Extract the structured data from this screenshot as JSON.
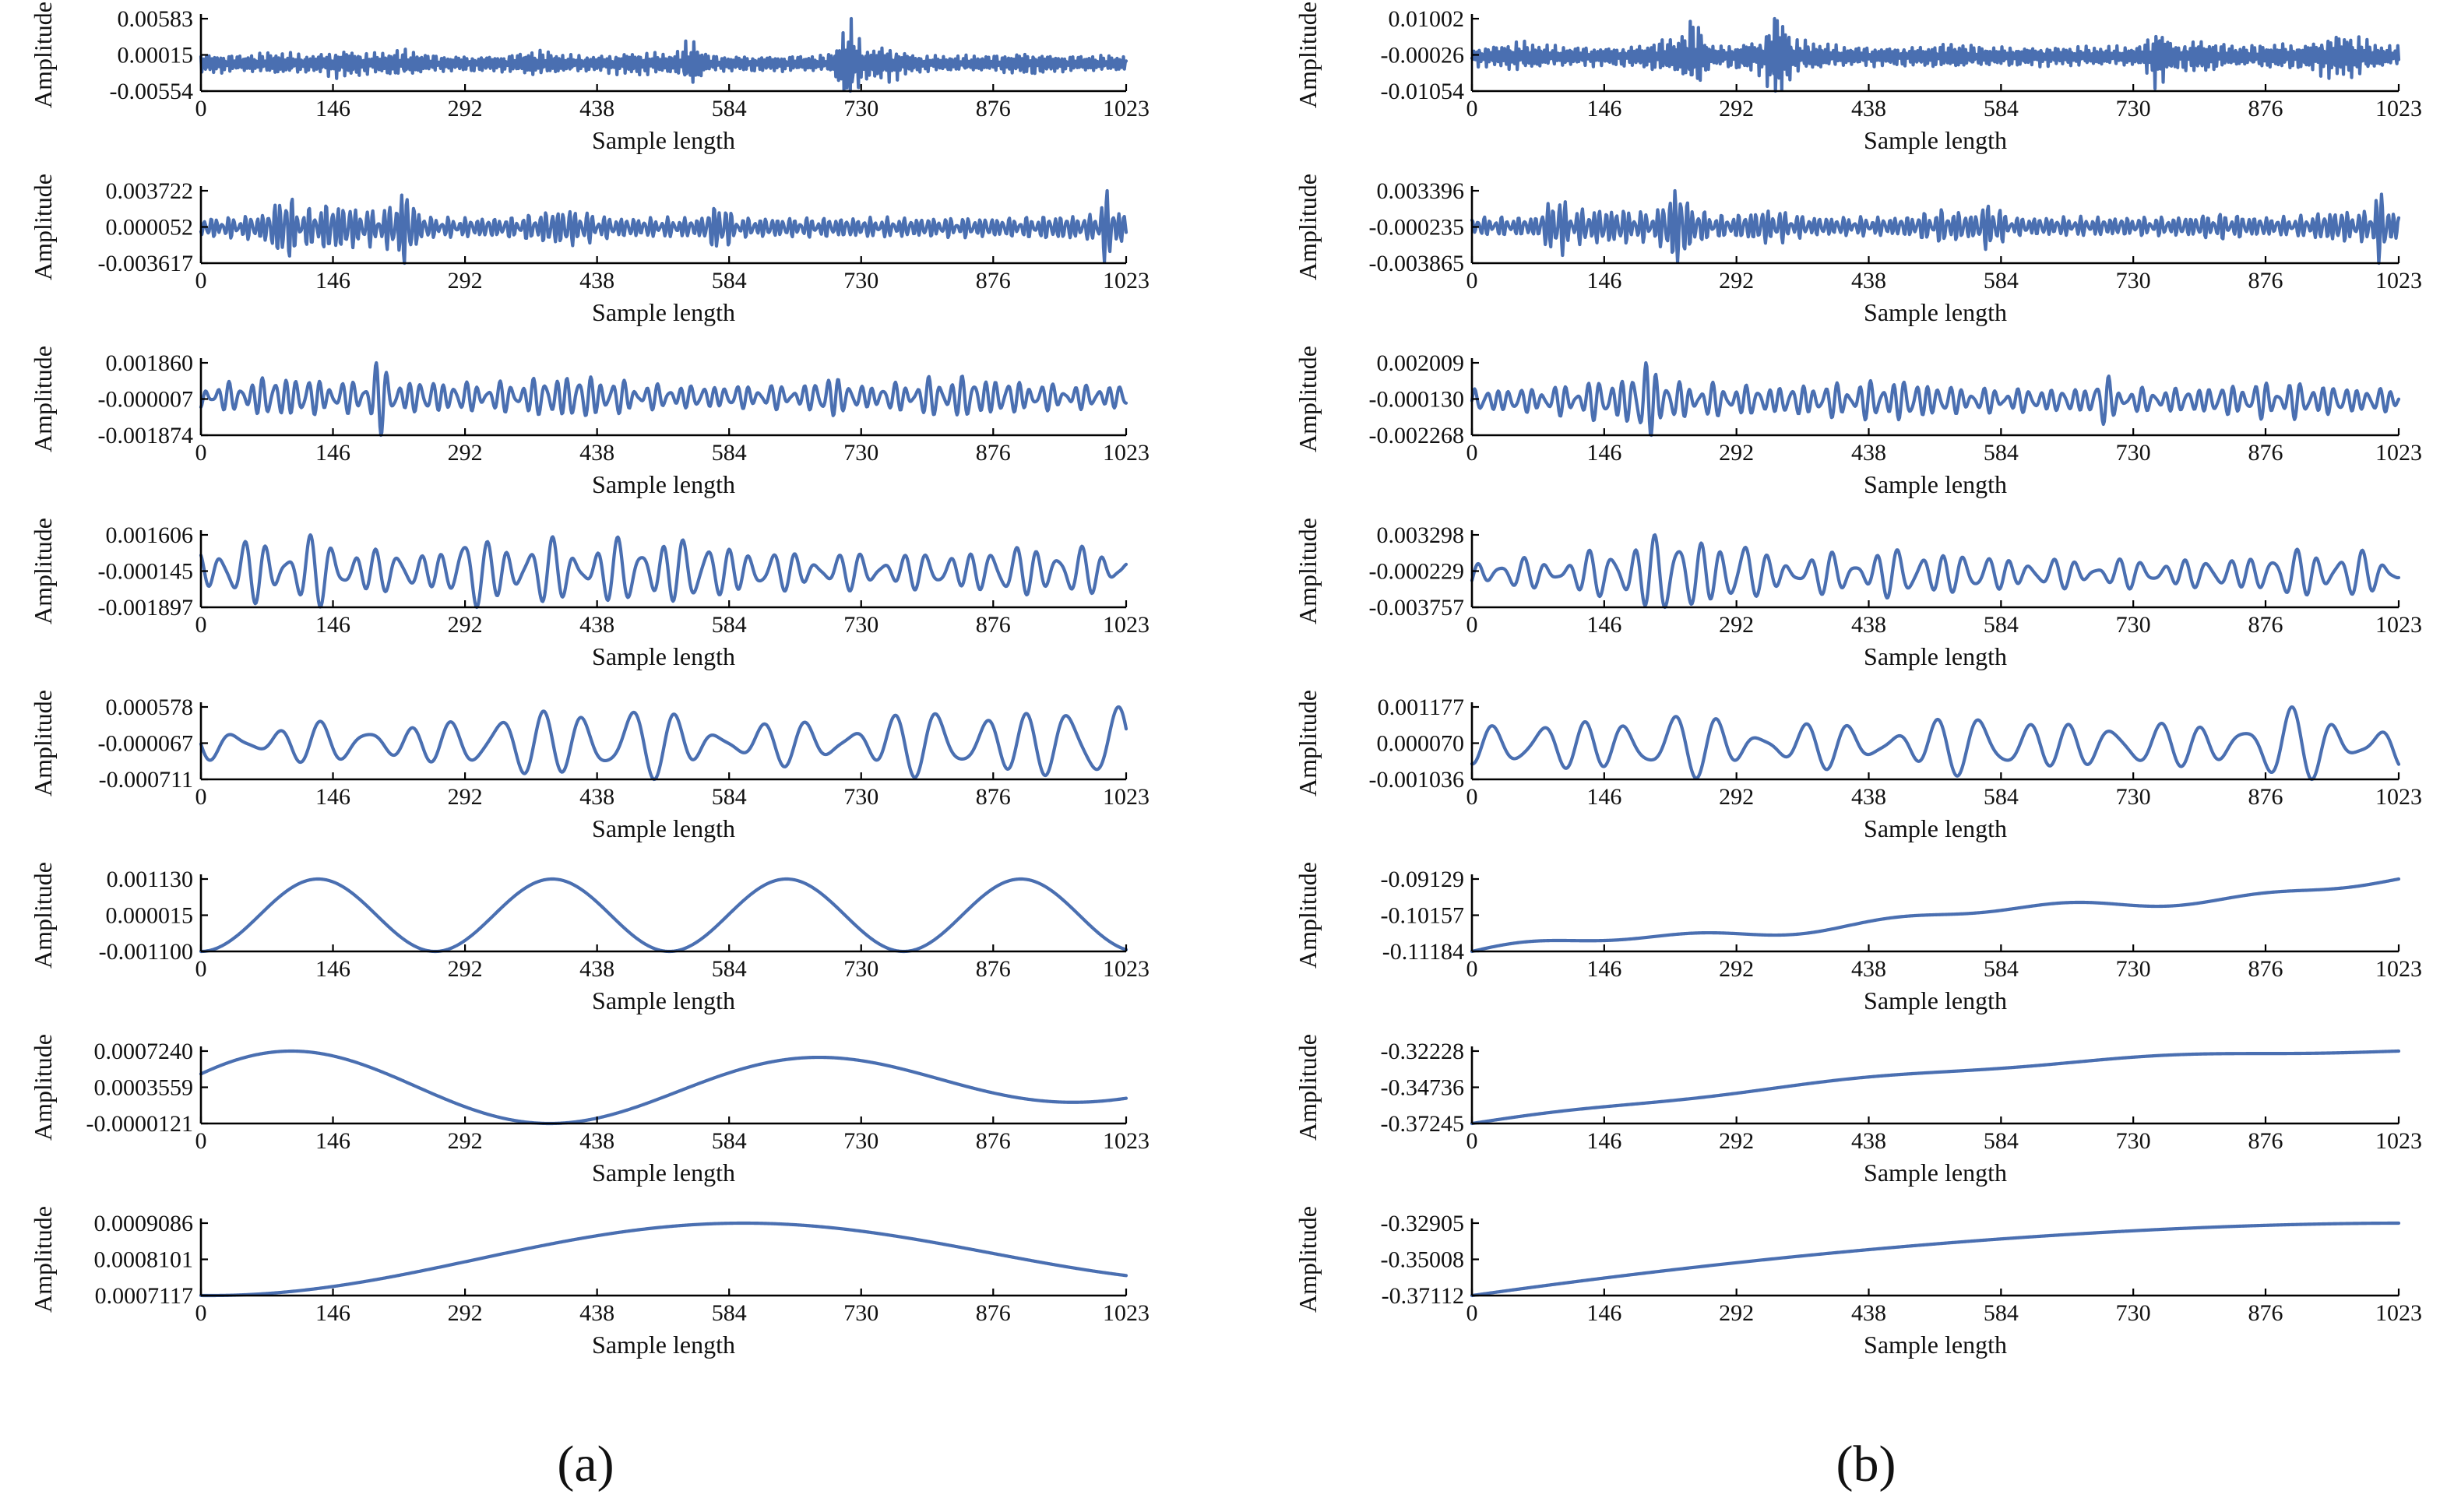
{
  "colors": {
    "signal": "#4a6fb1",
    "axis": "#000000",
    "text": "#111111"
  },
  "panel_labels": {
    "a": "(a)",
    "b": "(b)"
  },
  "chart_data": [
    {
      "id": "a1",
      "column": "a",
      "type": "line",
      "signal": "imf1",
      "x": {
        "label": "Sample length",
        "ticks": [
          "0",
          "146",
          "292",
          "438",
          "584",
          "730",
          "876",
          "1023"
        ],
        "range": [
          0,
          1023
        ]
      },
      "y": {
        "label": "Amplitude",
        "ticks": [
          "0.00583",
          "0.00015",
          "-0.00554"
        ],
        "range": [
          -0.00554,
          0.00583
        ]
      }
    },
    {
      "id": "a2",
      "column": "a",
      "type": "line",
      "signal": "imf2",
      "x": {
        "label": "Sample length",
        "ticks": [
          "0",
          "146",
          "292",
          "438",
          "584",
          "730",
          "876",
          "1023"
        ],
        "range": [
          0,
          1023
        ]
      },
      "y": {
        "label": "Amplitude",
        "ticks": [
          "0.003722",
          "0.000052",
          "-0.003617"
        ],
        "range": [
          -0.003617,
          0.003722
        ]
      }
    },
    {
      "id": "a3",
      "column": "a",
      "type": "line",
      "signal": "imf3",
      "x": {
        "label": "Sample length",
        "ticks": [
          "0",
          "146",
          "292",
          "438",
          "584",
          "730",
          "876",
          "1023"
        ],
        "range": [
          0,
          1023
        ]
      },
      "y": {
        "label": "Amplitude",
        "ticks": [
          "0.001860",
          "-0.000007",
          "-0.001874"
        ],
        "range": [
          -0.001874,
          0.00186
        ]
      }
    },
    {
      "id": "a4",
      "column": "a",
      "type": "line",
      "signal": "imf4",
      "x": {
        "label": "Sample length",
        "ticks": [
          "0",
          "146",
          "292",
          "438",
          "584",
          "730",
          "876",
          "1023"
        ],
        "range": [
          0,
          1023
        ]
      },
      "y": {
        "label": "Amplitude",
        "ticks": [
          "0.001606",
          "-0.000145",
          "-0.001897"
        ],
        "range": [
          -0.001897,
          0.001606
        ]
      }
    },
    {
      "id": "a5",
      "column": "a",
      "type": "line",
      "signal": "imf5",
      "x": {
        "label": "Sample length",
        "ticks": [
          "0",
          "146",
          "292",
          "438",
          "584",
          "730",
          "876",
          "1023"
        ],
        "range": [
          0,
          1023
        ]
      },
      "y": {
        "label": "Amplitude",
        "ticks": [
          "0.000578",
          "-0.000067",
          "-0.000711"
        ],
        "range": [
          -0.000711,
          0.000578
        ]
      }
    },
    {
      "id": "a6",
      "column": "a",
      "type": "line",
      "signal": "sine4",
      "x": {
        "label": "Sample length",
        "ticks": [
          "0",
          "146",
          "292",
          "438",
          "584",
          "730",
          "876",
          "1023"
        ],
        "range": [
          0,
          1023
        ]
      },
      "y": {
        "label": "Amplitude",
        "ticks": [
          "0.001130",
          "0.000015",
          "-0.001100"
        ],
        "range": [
          -0.0011,
          0.00113
        ]
      }
    },
    {
      "id": "a7",
      "column": "a",
      "type": "line",
      "signal": "wave_a7",
      "x": {
        "label": "Sample length",
        "ticks": [
          "0",
          "146",
          "292",
          "438",
          "584",
          "730",
          "876",
          "1023"
        ],
        "range": [
          0,
          1023
        ]
      },
      "y": {
        "label": "Amplitude",
        "ticks": [
          "0.0007240",
          "0.0003559",
          "-0.0000121"
        ],
        "range": [
          -1.21e-05,
          0.000724
        ]
      }
    },
    {
      "id": "a8",
      "column": "a",
      "type": "line",
      "signal": "wave_a8",
      "x": {
        "label": "Sample length",
        "ticks": [
          "0",
          "146",
          "292",
          "438",
          "584",
          "730",
          "876",
          "1023"
        ],
        "range": [
          0,
          1023
        ]
      },
      "y": {
        "label": "Amplitude",
        "ticks": [
          "0.0009086",
          "0.0008101",
          "0.0007117"
        ],
        "range": [
          0.0007117,
          0.0009086
        ]
      }
    },
    {
      "id": "b1",
      "column": "b",
      "type": "line",
      "signal": "imf1",
      "x": {
        "label": "Sample length",
        "ticks": [
          "0",
          "146",
          "292",
          "438",
          "584",
          "730",
          "876",
          "1023"
        ],
        "range": [
          0,
          1023
        ]
      },
      "y": {
        "label": "Amplitude",
        "ticks": [
          "0.01002",
          "-0.00026",
          "-0.01054"
        ],
        "range": [
          -0.01054,
          0.01002
        ]
      }
    },
    {
      "id": "b2",
      "column": "b",
      "type": "line",
      "signal": "imf2",
      "x": {
        "label": "Sample length",
        "ticks": [
          "0",
          "146",
          "292",
          "438",
          "584",
          "730",
          "876",
          "1023"
        ],
        "range": [
          0,
          1023
        ]
      },
      "y": {
        "label": "Amplitude",
        "ticks": [
          "0.003396",
          "-0.000235",
          "-0.003865"
        ],
        "range": [
          -0.003865,
          0.003396
        ]
      }
    },
    {
      "id": "b3",
      "column": "b",
      "type": "line",
      "signal": "imf3",
      "x": {
        "label": "Sample length",
        "ticks": [
          "0",
          "146",
          "292",
          "438",
          "584",
          "730",
          "876",
          "1023"
        ],
        "range": [
          0,
          1023
        ]
      },
      "y": {
        "label": "Amplitude",
        "ticks": [
          "0.002009",
          "-0.000130",
          "-0.002268"
        ],
        "range": [
          -0.002268,
          0.002009
        ]
      }
    },
    {
      "id": "b4",
      "column": "b",
      "type": "line",
      "signal": "imf4",
      "x": {
        "label": "Sample length",
        "ticks": [
          "0",
          "146",
          "292",
          "438",
          "584",
          "730",
          "876",
          "1023"
        ],
        "range": [
          0,
          1023
        ]
      },
      "y": {
        "label": "Amplitude",
        "ticks": [
          "0.003298",
          "-0.000229",
          "-0.003757"
        ],
        "range": [
          -0.003757,
          0.003298
        ]
      }
    },
    {
      "id": "b5",
      "column": "b",
      "type": "line",
      "signal": "imf5",
      "x": {
        "label": "Sample length",
        "ticks": [
          "0",
          "146",
          "292",
          "438",
          "584",
          "730",
          "876",
          "1023"
        ],
        "range": [
          0,
          1023
        ]
      },
      "y": {
        "label": "Amplitude",
        "ticks": [
          "0.001177",
          "0.000070",
          "-0.001036"
        ],
        "range": [
          -0.001036,
          0.001177
        ]
      }
    },
    {
      "id": "b6",
      "column": "b",
      "type": "line",
      "signal": "trend_b6",
      "x": {
        "label": "Sample length",
        "ticks": [
          "0",
          "146",
          "292",
          "438",
          "584",
          "730",
          "876",
          "1023"
        ],
        "range": [
          0,
          1023
        ]
      },
      "y": {
        "label": "Amplitude",
        "ticks": [
          "-0.09129",
          "-0.10157",
          "-0.11184"
        ],
        "range": [
          -0.11184,
          -0.09129
        ]
      }
    },
    {
      "id": "b7",
      "column": "b",
      "type": "line",
      "signal": "trend_b7",
      "x": {
        "label": "Sample length",
        "ticks": [
          "0",
          "146",
          "292",
          "438",
          "584",
          "730",
          "876",
          "1023"
        ],
        "range": [
          0,
          1023
        ]
      },
      "y": {
        "label": "Amplitude",
        "ticks": [
          "-0.32228",
          "-0.34736",
          "-0.37245"
        ],
        "range": [
          -0.37245,
          -0.32228
        ]
      }
    },
    {
      "id": "b8",
      "column": "b",
      "type": "line",
      "signal": "trend_b8",
      "x": {
        "label": "Sample length",
        "ticks": [
          "0",
          "146",
          "292",
          "438",
          "584",
          "730",
          "876",
          "1023"
        ],
        "range": [
          0,
          1023
        ]
      },
      "y": {
        "label": "Amplitude",
        "ticks": [
          "-0.32905",
          "-0.35008",
          "-0.37112"
        ],
        "range": [
          -0.37112,
          -0.32905
        ]
      }
    }
  ]
}
